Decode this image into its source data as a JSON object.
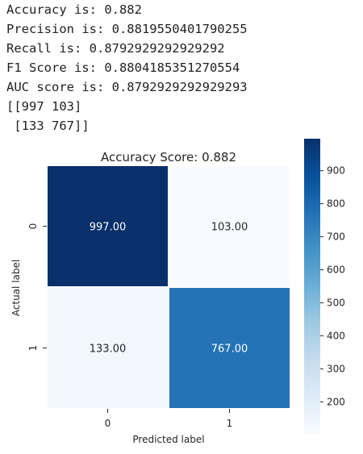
{
  "console_output": {
    "lines": [
      "Accuracy is: 0.882",
      "Precision is: 0.8819550401790255",
      "Recall is: 0.8792929292929292",
      "F1 Score is: 0.8804185351270554",
      "AUC score is: 0.8792929292929293",
      "[[997 103]",
      " [133 767]]"
    ]
  },
  "chart_data": {
    "type": "heatmap",
    "title": "Accuracy Score: 0.882",
    "xlabel": "Predicted label",
    "ylabel": "Actual label",
    "x_categories": [
      "0",
      "1"
    ],
    "y_categories": [
      "0",
      "1"
    ],
    "values": [
      [
        997,
        103
      ],
      [
        133,
        767
      ]
    ],
    "cell_labels": [
      [
        "997.00",
        "103.00"
      ],
      [
        "133.00",
        "767.00"
      ]
    ],
    "colormap": "Blues",
    "color_range": [
      103,
      997
    ],
    "colorbar": {
      "ticks": [
        200,
        300,
        400,
        500,
        600,
        700,
        800,
        900
      ],
      "tick_labels": [
        "200",
        "300",
        "400",
        "500",
        "600",
        "700",
        "800",
        "900"
      ]
    },
    "cell_border_color": "#ffffff",
    "annotation_colors": {
      "dark_cell": "#ffffff",
      "light_cell": "#262626"
    }
  }
}
